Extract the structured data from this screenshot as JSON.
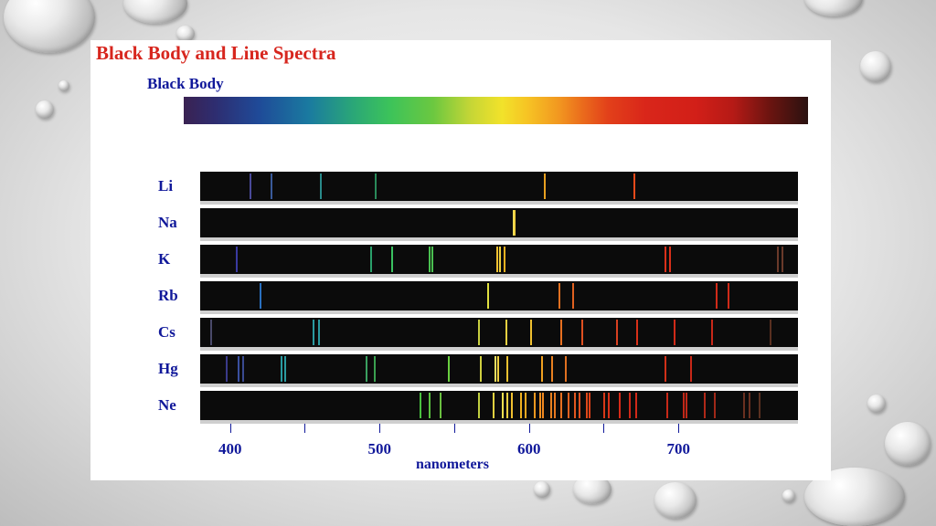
{
  "title": "Black Body and Line Spectra",
  "black_body_label": "Black Body",
  "axis": {
    "title": "nanometers",
    "major_ticks": [
      {
        "value": 400,
        "label": "400"
      },
      {
        "value": 500,
        "label": "500"
      },
      {
        "value": 600,
        "label": "600"
      },
      {
        "value": 700,
        "label": "700"
      }
    ],
    "minor_ticks": [
      450,
      550,
      650
    ]
  },
  "elements": [
    {
      "symbol": "Li",
      "lines": [
        {
          "nm": 413,
          "color": "#4a4a9a"
        },
        {
          "nm": 427,
          "color": "#3a5a9a"
        },
        {
          "nm": 460,
          "color": "#2a8a8a"
        },
        {
          "nm": 497,
          "color": "#2a8a5a"
        },
        {
          "nm": 610,
          "color": "#e8a020"
        },
        {
          "nm": 670,
          "color": "#e84a1a"
        }
      ]
    },
    {
      "symbol": "Na",
      "lines": [
        {
          "nm": 589,
          "color": "#f0e060"
        },
        {
          "nm": 590,
          "color": "#f0d040"
        }
      ]
    },
    {
      "symbol": "K",
      "lines": [
        {
          "nm": 404,
          "color": "#3a3aa0"
        },
        {
          "nm": 494,
          "color": "#2aa06a"
        },
        {
          "nm": 508,
          "color": "#3ac060"
        },
        {
          "nm": 533,
          "color": "#4ac050"
        },
        {
          "nm": 535,
          "color": "#4ac050"
        },
        {
          "nm": 578,
          "color": "#f0c030"
        },
        {
          "nm": 580,
          "color": "#f0d040"
        },
        {
          "nm": 583,
          "color": "#f0b020"
        },
        {
          "nm": 691,
          "color": "#d8301a"
        },
        {
          "nm": 694,
          "color": "#d8301a"
        },
        {
          "nm": 766,
          "color": "#6a3a2a"
        },
        {
          "nm": 769,
          "color": "#6a3a2a"
        }
      ]
    },
    {
      "symbol": "Rb",
      "lines": [
        {
          "nm": 420,
          "color": "#2a70c0"
        },
        {
          "nm": 572,
          "color": "#e0e040"
        },
        {
          "nm": 620,
          "color": "#e07020"
        },
        {
          "nm": 629,
          "color": "#e06020"
        },
        {
          "nm": 725,
          "color": "#d02a18"
        },
        {
          "nm": 733,
          "color": "#d02a18"
        }
      ]
    },
    {
      "symbol": "Cs",
      "lines": [
        {
          "nm": 387,
          "color": "#4a4a6a"
        },
        {
          "nm": 455,
          "color": "#2a9aa0"
        },
        {
          "nm": 459,
          "color": "#2a9aa0"
        },
        {
          "nm": 566,
          "color": "#c8d040"
        },
        {
          "nm": 584,
          "color": "#e8d040"
        },
        {
          "nm": 601,
          "color": "#f0c030"
        },
        {
          "nm": 621,
          "color": "#e87020"
        },
        {
          "nm": 635,
          "color": "#e05020"
        },
        {
          "nm": 658,
          "color": "#d84020"
        },
        {
          "nm": 672,
          "color": "#d83018"
        },
        {
          "nm": 697,
          "color": "#d02a18"
        },
        {
          "nm": 722,
          "color": "#c82818"
        },
        {
          "nm": 761,
          "color": "#5a3020"
        }
      ]
    },
    {
      "symbol": "Hg",
      "lines": [
        {
          "nm": 397,
          "color": "#3a3a8a"
        },
        {
          "nm": 405,
          "color": "#3a50a0"
        },
        {
          "nm": 408,
          "color": "#3a4a90"
        },
        {
          "nm": 434,
          "color": "#2a9aa0"
        },
        {
          "nm": 436,
          "color": "#2a9aa0"
        },
        {
          "nm": 491,
          "color": "#3aa060"
        },
        {
          "nm": 496,
          "color": "#3aa050"
        },
        {
          "nm": 546,
          "color": "#6ad040"
        },
        {
          "nm": 567,
          "color": "#d0d040"
        },
        {
          "nm": 577,
          "color": "#f0e060"
        },
        {
          "nm": 579,
          "color": "#f0d040"
        },
        {
          "nm": 585,
          "color": "#e8c030"
        },
        {
          "nm": 608,
          "color": "#f0a020"
        },
        {
          "nm": 615,
          "color": "#e88020"
        },
        {
          "nm": 624,
          "color": "#e07020"
        },
        {
          "nm": 691,
          "color": "#d03018"
        },
        {
          "nm": 708,
          "color": "#c82818"
        }
      ]
    },
    {
      "symbol": "Ne",
      "lines": [
        {
          "nm": 527,
          "color": "#4ac040"
        },
        {
          "nm": 533,
          "color": "#5ac040"
        },
        {
          "nm": 540,
          "color": "#6ac040"
        },
        {
          "nm": 566,
          "color": "#c0d040"
        },
        {
          "nm": 576,
          "color": "#e0d040"
        },
        {
          "nm": 582,
          "color": "#f0e050"
        },
        {
          "nm": 585,
          "color": "#f0d040"
        },
        {
          "nm": 588,
          "color": "#f0c030"
        },
        {
          "nm": 594,
          "color": "#f0b020"
        },
        {
          "nm": 597,
          "color": "#f0a820"
        },
        {
          "nm": 603,
          "color": "#f09820"
        },
        {
          "nm": 607,
          "color": "#f09020"
        },
        {
          "nm": 609,
          "color": "#f08820"
        },
        {
          "nm": 614,
          "color": "#e88020"
        },
        {
          "nm": 617,
          "color": "#e87820"
        },
        {
          "nm": 621,
          "color": "#e87020"
        },
        {
          "nm": 626,
          "color": "#e06020"
        },
        {
          "nm": 630,
          "color": "#e05820"
        },
        {
          "nm": 633,
          "color": "#e05020"
        },
        {
          "nm": 638,
          "color": "#e04818"
        },
        {
          "nm": 640,
          "color": "#e04018"
        },
        {
          "nm": 650,
          "color": "#d83818"
        },
        {
          "nm": 653,
          "color": "#d83018"
        },
        {
          "nm": 660,
          "color": "#d82a18"
        },
        {
          "nm": 667,
          "color": "#d02818"
        },
        {
          "nm": 671,
          "color": "#d02818"
        },
        {
          "nm": 692,
          "color": "#c82818"
        },
        {
          "nm": 703,
          "color": "#c02818"
        },
        {
          "nm": 705,
          "color": "#c02818"
        },
        {
          "nm": 717,
          "color": "#b02818"
        },
        {
          "nm": 724,
          "color": "#a02818"
        },
        {
          "nm": 743,
          "color": "#6a3020"
        },
        {
          "nm": 747,
          "color": "#6a3020"
        },
        {
          "nm": 754,
          "color": "#5a3020"
        }
      ]
    }
  ]
}
